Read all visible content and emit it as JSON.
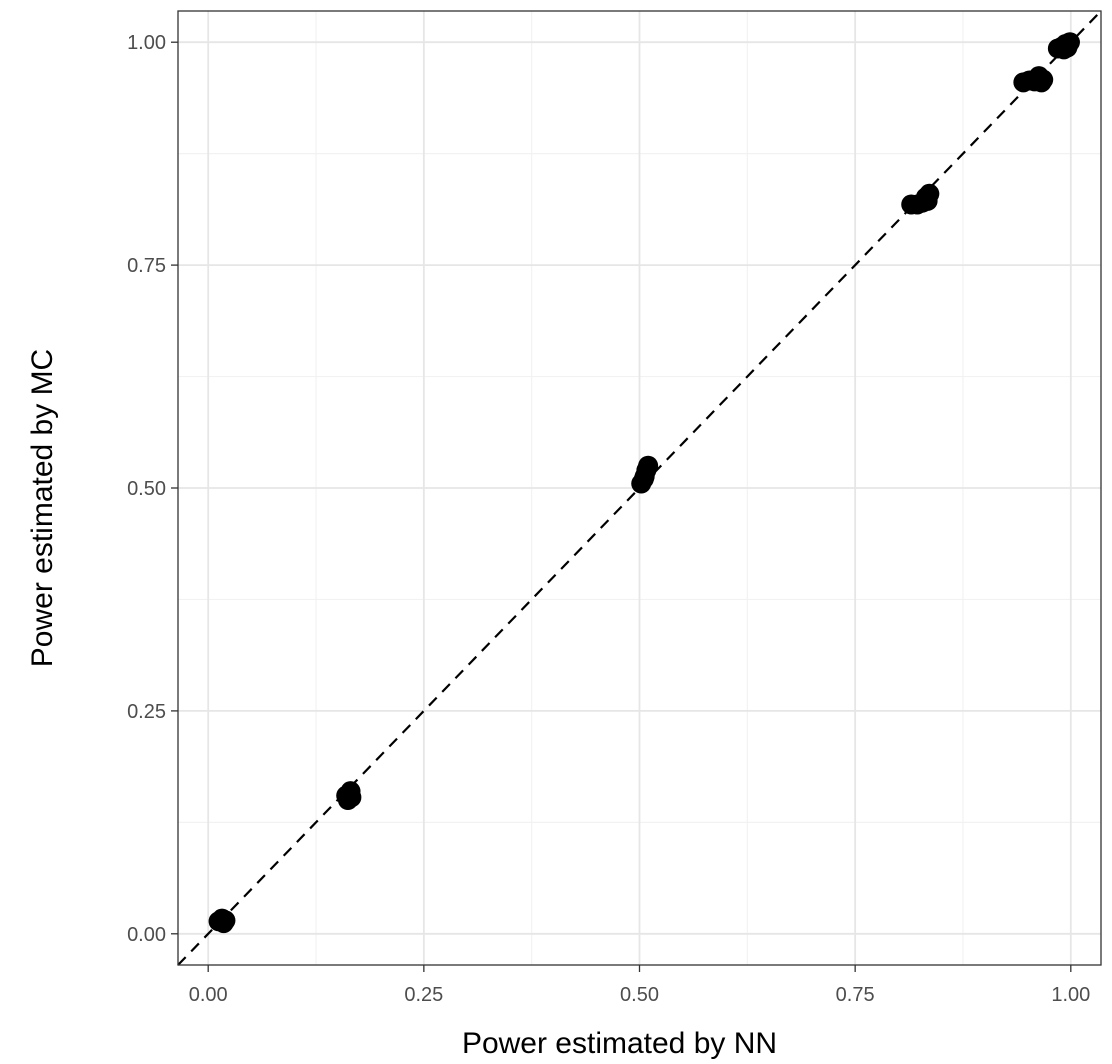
{
  "chart_data": {
    "type": "scatter",
    "title": "",
    "xlabel": "Power estimated by NN",
    "ylabel": "Power estimated by MC",
    "xlim": [
      -0.035,
      1.035
    ],
    "ylim": [
      -0.035,
      1.035
    ],
    "x_ticks": [
      0.0,
      0.25,
      0.5,
      0.75,
      1.0
    ],
    "x_tick_labels": [
      "0.00",
      "0.25",
      "0.50",
      "0.75",
      "1.00"
    ],
    "y_ticks": [
      0.0,
      0.25,
      0.5,
      0.75,
      1.0
    ],
    "y_tick_labels": [
      "0.00",
      "0.25",
      "0.50",
      "0.75",
      "1.00"
    ],
    "grid": true,
    "reference_line": {
      "style": "dashed",
      "slope": 1,
      "intercept": 0
    },
    "point_color": "#000000",
    "points": [
      {
        "x": 0.012,
        "y": 0.014
      },
      {
        "x": 0.016,
        "y": 0.017
      },
      {
        "x": 0.02,
        "y": 0.015
      },
      {
        "x": 0.018,
        "y": 0.012
      },
      {
        "x": 0.16,
        "y": 0.155
      },
      {
        "x": 0.165,
        "y": 0.16
      },
      {
        "x": 0.162,
        "y": 0.15
      },
      {
        "x": 0.166,
        "y": 0.153
      },
      {
        "x": 0.502,
        "y": 0.505
      },
      {
        "x": 0.505,
        "y": 0.51
      },
      {
        "x": 0.508,
        "y": 0.52
      },
      {
        "x": 0.51,
        "y": 0.525
      },
      {
        "x": 0.506,
        "y": 0.513
      },
      {
        "x": 0.815,
        "y": 0.818
      },
      {
        "x": 0.822,
        "y": 0.818
      },
      {
        "x": 0.828,
        "y": 0.82
      },
      {
        "x": 0.834,
        "y": 0.822
      },
      {
        "x": 0.836,
        "y": 0.83
      },
      {
        "x": 0.832,
        "y": 0.826
      },
      {
        "x": 0.945,
        "y": 0.955
      },
      {
        "x": 0.952,
        "y": 0.957
      },
      {
        "x": 0.958,
        "y": 0.956
      },
      {
        "x": 0.962,
        "y": 0.96
      },
      {
        "x": 0.966,
        "y": 0.955
      },
      {
        "x": 0.968,
        "y": 0.958
      },
      {
        "x": 0.963,
        "y": 0.962
      },
      {
        "x": 0.985,
        "y": 0.993
      },
      {
        "x": 0.99,
        "y": 0.995
      },
      {
        "x": 0.994,
        "y": 0.998
      },
      {
        "x": 0.997,
        "y": 0.997
      },
      {
        "x": 0.999,
        "y": 1.0
      },
      {
        "x": 0.992,
        "y": 0.992
      },
      {
        "x": 0.996,
        "y": 0.994
      }
    ]
  }
}
